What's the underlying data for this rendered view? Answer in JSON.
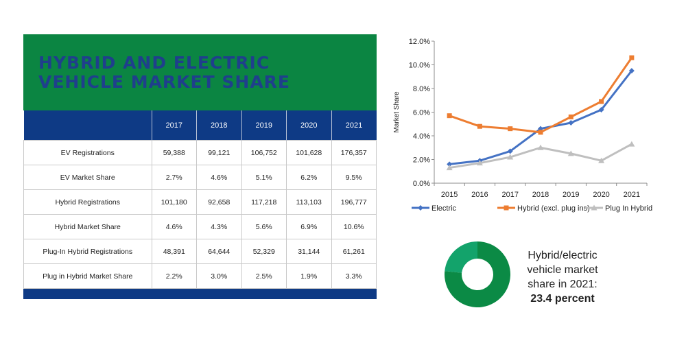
{
  "table": {
    "title_line1": "HYBRID AND ELECTRIC",
    "title_line2": "VEHICLE MARKET SHARE",
    "columns": [
      "2017",
      "2018",
      "2019",
      "2020",
      "2021"
    ],
    "rows": [
      {
        "label": "EV Registrations",
        "values": [
          "59,388",
          "99,121",
          "106,752",
          "101,628",
          "176,357"
        ]
      },
      {
        "label": "EV Market Share",
        "values": [
          "2.7%",
          "4.6%",
          "5.1%",
          "6.2%",
          "9.5%"
        ]
      },
      {
        "label": "Hybrid Registrations",
        "values": [
          "101,180",
          "92,658",
          "117,218",
          "113,103",
          "196,777"
        ]
      },
      {
        "label": "Hybrid Market Share",
        "values": [
          "4.6%",
          "4.3%",
          "5.6%",
          "6.9%",
          "10.6%"
        ]
      },
      {
        "label": "Plug-In Hybrid Registrations",
        "values": [
          "48,391",
          "64,644",
          "52,329",
          "31,144",
          "61,261"
        ]
      },
      {
        "label": "Plug in Hybrid Market Share",
        "values": [
          "2.2%",
          "3.0%",
          "2.5%",
          "1.9%",
          "3.3%"
        ]
      }
    ],
    "colors": {
      "banner": "#0b8542",
      "title": "#1f3f8c",
      "header": "#0e3a85"
    }
  },
  "chart_data": [
    {
      "type": "line",
      "title": "",
      "xlabel": "",
      "ylabel": "Market Share",
      "x": [
        "2015",
        "2016",
        "2017",
        "2018",
        "2019",
        "2020",
        "2021"
      ],
      "y_ticks": [
        "0.0%",
        "2.0%",
        "4.0%",
        "6.0%",
        "8.0%",
        "10.0%",
        "12.0%"
      ],
      "ylim": [
        0,
        12
      ],
      "legend_position": "bottom",
      "grid": false,
      "series": [
        {
          "name": "Electric",
          "color": "#4472c4",
          "marker": "diamond",
          "values": [
            1.6,
            1.9,
            2.7,
            4.6,
            5.1,
            6.2,
            9.5
          ]
        },
        {
          "name": "Hybrid (excl. plug ins)",
          "color": "#ed7d31",
          "marker": "square",
          "values": [
            5.7,
            4.8,
            4.6,
            4.3,
            5.6,
            6.9,
            10.6
          ]
        },
        {
          "name": "Plug In Hybrid",
          "color": "#bfbfbf",
          "marker": "triangle",
          "values": [
            1.3,
            1.7,
            2.2,
            3.0,
            2.5,
            1.9,
            3.3
          ]
        }
      ]
    },
    {
      "type": "pie",
      "donut": true,
      "values": [
        23.4,
        76.6
      ],
      "colors": [
        "#13a36b",
        "#0b8a45"
      ],
      "text_lines": [
        "Hybrid/electric",
        "vehicle market",
        "share in 2021:"
      ],
      "value_text": "23.4 percent"
    }
  ]
}
